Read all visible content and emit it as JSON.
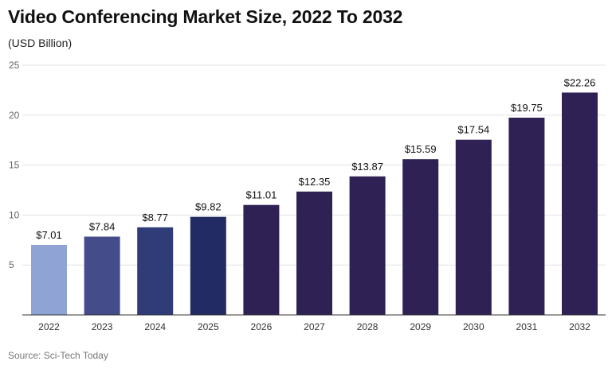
{
  "title": "Video Conferencing Market Size, 2022 To 2032",
  "subtitle": "(USD Billion)",
  "source": "Source: Sci-Tech Today",
  "chart_data": {
    "type": "bar",
    "categories": [
      "2022",
      "2023",
      "2024",
      "2025",
      "2026",
      "2027",
      "2028",
      "2029",
      "2030",
      "2031",
      "2032"
    ],
    "values": [
      7.01,
      7.84,
      8.77,
      9.82,
      11.01,
      12.35,
      13.87,
      15.59,
      17.54,
      19.75,
      22.26
    ],
    "data_labels": [
      "$7.01",
      "$7.84",
      "$8.77",
      "$9.82",
      "$11.01",
      "$12.35",
      "$13.87",
      "$15.59",
      "$17.54",
      "$19.75",
      "$22.26"
    ],
    "bar_colors": [
      "#8fa3d4",
      "#454c8a",
      "#2f3c78",
      "#222b63",
      "#302155",
      "#302155",
      "#302155",
      "#302155",
      "#302155",
      "#302155",
      "#302155"
    ],
    "yticks": [
      "5",
      "10",
      "15",
      "20",
      "25"
    ],
    "ylim": [
      0,
      25
    ],
    "grid": true,
    "xlabel": "",
    "ylabel": ""
  }
}
